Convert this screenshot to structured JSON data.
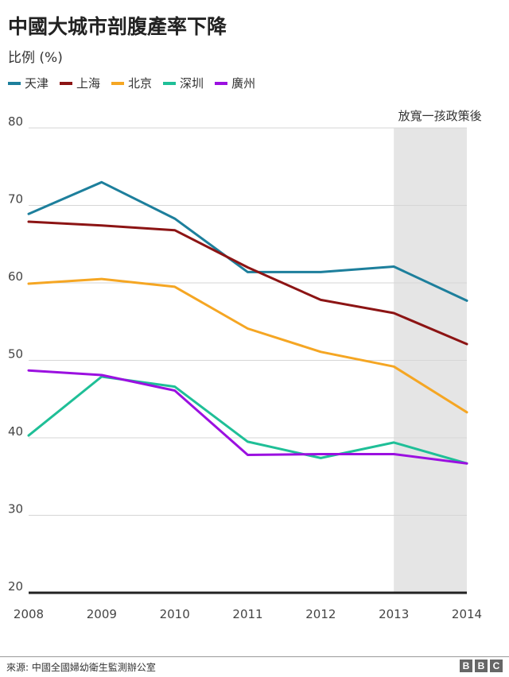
{
  "chart_data": {
    "type": "line",
    "title": "中國大城市剖腹產率下降",
    "subtitle": "比例 (%)",
    "x": [
      "2008",
      "2009",
      "2010",
      "2011",
      "2012",
      "2013",
      "2014"
    ],
    "ylim": [
      20,
      80
    ],
    "yticks": [
      20,
      30,
      40,
      50,
      60,
      70,
      80
    ],
    "grid": true,
    "legend_position": "top-left",
    "annotation": {
      "text": "放寬一孩政策後",
      "x_start": "2013",
      "x_end": "2014"
    },
    "series": [
      {
        "name": "天津",
        "color": "#1d7f9c",
        "values": [
          68.9,
          73.0,
          68.3,
          61.4,
          61.4,
          62.1,
          57.7
        ]
      },
      {
        "name": "上海",
        "color": "#8c1414",
        "values": [
          67.9,
          67.4,
          66.8,
          62.0,
          57.8,
          56.1,
          52.1
        ]
      },
      {
        "name": "北京",
        "color": "#f5a623",
        "values": [
          59.9,
          60.5,
          59.5,
          54.1,
          51.1,
          49.2,
          43.3
        ]
      },
      {
        "name": "深圳",
        "color": "#1fbf97",
        "values": [
          40.3,
          47.9,
          46.6,
          39.5,
          37.4,
          39.4,
          36.7
        ]
      },
      {
        "name": "廣州",
        "color": "#9b10e0",
        "values": [
          48.7,
          48.1,
          46.1,
          37.8,
          37.9,
          37.9,
          36.7
        ]
      }
    ]
  },
  "footer": {
    "source": "來源: 中國全國婦幼衛生監測辦公室",
    "logo": [
      "B",
      "B",
      "C"
    ]
  }
}
